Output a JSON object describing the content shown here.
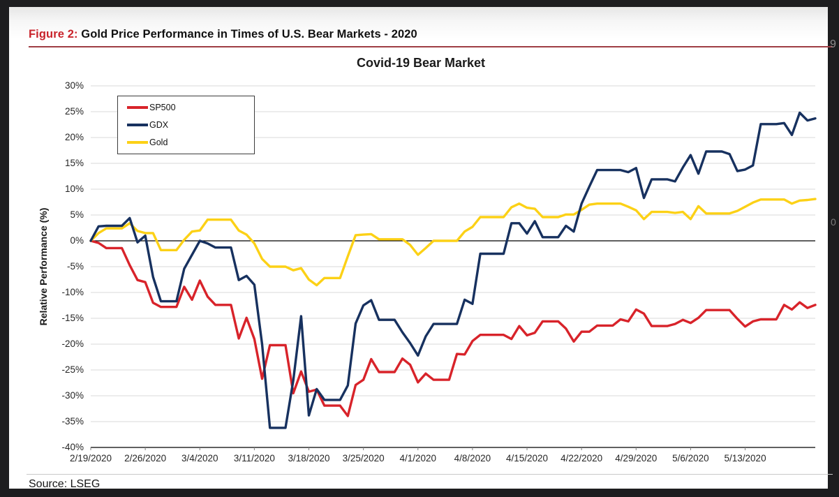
{
  "page": {
    "background": "#1d1d1f",
    "panel_background": "#ffffff"
  },
  "figure_header": {
    "prefix": "Figure 2:",
    "prefix_color": "#c9232b",
    "title": " Gold Price Performance in Times of U.S. Bear Markets - 2020",
    "rule_color": "#9e3e44"
  },
  "source": {
    "label": "Source: LSEG"
  },
  "edge_artifacts": {
    "right_top": "9",
    "right_middle": "0"
  },
  "chart_data": {
    "type": "line",
    "title": "Covid-19 Bear Market",
    "xlabel": "",
    "ylabel": "Relative Performance (%)",
    "ylim": [
      -40,
      30
    ],
    "ytick_step": 5,
    "ytick_labels": [
      "30%",
      "25%",
      "20%",
      "15%",
      "10%",
      "5%",
      "0%",
      "-5%",
      "-10%",
      "-15%",
      "-20%",
      "-25%",
      "-30%",
      "-35%",
      "-40%"
    ],
    "xtick_labels": [
      "2/19/2020",
      "2/26/2020",
      "3/4/2020",
      "3/11/2020",
      "3/18/2020",
      "3/25/2020",
      "4/1/2020",
      "4/8/2020",
      "4/15/2020",
      "4/22/2020",
      "4/29/2020",
      "5/6/2020",
      "5/13/2020"
    ],
    "xtick_every_days": 7,
    "grid": true,
    "zero_line": true,
    "legend_position": "top-left-inside",
    "grid_color": "#d9d9d9",
    "axis_color": "#000000",
    "dates": [
      "2/19/2020",
      "2/20/2020",
      "2/21/2020",
      "2/22/2020",
      "2/23/2020",
      "2/24/2020",
      "2/25/2020",
      "2/26/2020",
      "2/27/2020",
      "2/28/2020",
      "2/29/2020",
      "3/1/2020",
      "3/2/2020",
      "3/3/2020",
      "3/4/2020",
      "3/5/2020",
      "3/6/2020",
      "3/7/2020",
      "3/8/2020",
      "3/9/2020",
      "3/10/2020",
      "3/11/2020",
      "3/12/2020",
      "3/13/2020",
      "3/14/2020",
      "3/15/2020",
      "3/16/2020",
      "3/17/2020",
      "3/18/2020",
      "3/19/2020",
      "3/20/2020",
      "3/21/2020",
      "3/22/2020",
      "3/23/2020",
      "3/24/2020",
      "3/25/2020",
      "3/26/2020",
      "3/27/2020",
      "3/28/2020",
      "3/29/2020",
      "3/30/2020",
      "3/31/2020",
      "4/1/2020",
      "4/2/2020",
      "4/3/2020",
      "4/4/2020",
      "4/5/2020",
      "4/6/2020",
      "4/7/2020",
      "4/8/2020",
      "4/9/2020",
      "4/10/2020",
      "4/11/2020",
      "4/12/2020",
      "4/13/2020",
      "4/14/2020",
      "4/15/2020",
      "4/16/2020",
      "4/17/2020",
      "4/18/2020",
      "4/19/2020",
      "4/20/2020",
      "4/21/2020",
      "4/22/2020",
      "4/23/2020",
      "4/24/2020",
      "4/25/2020",
      "4/26/2020",
      "4/27/2020",
      "4/28/2020",
      "4/29/2020",
      "4/30/2020",
      "5/1/2020",
      "5/2/2020",
      "5/3/2020",
      "5/4/2020",
      "5/5/2020",
      "5/6/2020",
      "5/7/2020",
      "5/8/2020",
      "5/9/2020",
      "5/10/2020",
      "5/11/2020",
      "5/12/2020",
      "5/13/2020",
      "5/14/2020",
      "5/15/2020",
      "5/16/2020",
      "5/17/2020",
      "5/18/2020",
      "5/19/2020",
      "5/20/2020",
      "5/21/2020",
      "5/22/2020"
    ],
    "series": [
      {
        "name": "SP500",
        "color": "#d8232a",
        "values": [
          0.0,
          -0.4,
          -1.4,
          -1.4,
          -1.4,
          -4.7,
          -7.6,
          -8.0,
          -12.0,
          -12.8,
          -12.8,
          -12.8,
          -8.9,
          -11.4,
          -7.7,
          -10.8,
          -12.4,
          -12.4,
          -12.4,
          -18.9,
          -14.9,
          -19.0,
          -26.7,
          -20.2,
          -20.2,
          -20.2,
          -29.5,
          -25.3,
          -29.2,
          -28.8,
          -31.9,
          -31.9,
          -31.9,
          -33.9,
          -27.9,
          -26.9,
          -22.9,
          -25.4,
          -25.4,
          -25.4,
          -22.8,
          -24.0,
          -27.4,
          -25.7,
          -26.9,
          -26.9,
          -26.9,
          -21.9,
          -22.0,
          -19.4,
          -18.2,
          -18.2,
          -18.2,
          -18.2,
          -19.0,
          -16.5,
          -18.3,
          -17.8,
          -15.6,
          -15.6,
          -15.6,
          -17.0,
          -19.5,
          -17.6,
          -17.6,
          -16.4,
          -16.4,
          -16.4,
          -15.2,
          -15.6,
          -13.3,
          -14.1,
          -16.5,
          -16.5,
          -16.5,
          -16.1,
          -15.3,
          -15.9,
          -14.9,
          -13.4,
          -13.4,
          -13.4,
          -13.4,
          -15.1,
          -16.6,
          -15.6,
          -15.2,
          -15.2,
          -15.2,
          -12.4,
          -13.3,
          -11.9,
          -13.0,
          -12.4
        ]
      },
      {
        "name": "GDX",
        "color": "#17315f",
        "values": [
          0.0,
          2.8,
          2.9,
          2.9,
          2.9,
          4.4,
          -0.3,
          1.0,
          -7.0,
          -11.7,
          -11.7,
          -11.7,
          -5.4,
          -2.7,
          0.0,
          -0.5,
          -1.3,
          -1.3,
          -1.3,
          -7.6,
          -6.8,
          -8.5,
          -20.0,
          -36.2,
          -36.2,
          -36.2,
          -27.0,
          -14.6,
          -33.8,
          -28.7,
          -30.8,
          -30.8,
          -30.8,
          -28.0,
          -16.0,
          -12.5,
          -11.5,
          -15.3,
          -15.3,
          -15.3,
          -17.7,
          -19.8,
          -22.2,
          -18.5,
          -16.1,
          -16.1,
          -16.1,
          -16.1,
          -11.4,
          -12.2,
          -2.5,
          -2.5,
          -2.5,
          -2.5,
          3.4,
          3.4,
          1.4,
          3.8,
          0.7,
          0.7,
          0.7,
          2.9,
          1.8,
          7.2,
          10.5,
          13.7,
          13.7,
          13.7,
          13.7,
          13.3,
          14.1,
          8.3,
          11.9,
          11.9,
          11.9,
          11.5,
          14.2,
          16.6,
          13.0,
          17.3,
          17.3,
          17.3,
          16.8,
          13.5,
          13.8,
          14.6,
          22.6,
          22.6,
          22.6,
          22.8,
          20.5,
          24.8,
          23.3,
          23.7
        ]
      },
      {
        "name": "Gold",
        "color": "#fcd116",
        "values": [
          0.0,
          1.5,
          2.4,
          2.4,
          2.4,
          3.4,
          1.9,
          1.5,
          1.5,
          -1.8,
          -1.8,
          -1.8,
          0.2,
          1.8,
          2.0,
          4.1,
          4.1,
          4.1,
          4.1,
          2.0,
          1.2,
          -0.5,
          -3.5,
          -5.0,
          -5.0,
          -5.0,
          -5.7,
          -5.3,
          -7.5,
          -8.6,
          -7.2,
          -7.2,
          -7.2,
          -3.0,
          1.1,
          1.2,
          1.3,
          0.3,
          0.3,
          0.3,
          0.3,
          -0.8,
          -2.7,
          -1.4,
          0.0,
          0.0,
          0.0,
          0.0,
          1.8,
          2.7,
          4.6,
          4.6,
          4.6,
          4.6,
          6.5,
          7.2,
          6.4,
          6.2,
          4.6,
          4.6,
          4.6,
          5.1,
          5.1,
          6.0,
          7.0,
          7.2,
          7.2,
          7.2,
          7.2,
          6.6,
          5.9,
          4.2,
          5.6,
          5.6,
          5.6,
          5.4,
          5.6,
          4.2,
          6.7,
          5.3,
          5.3,
          5.3,
          5.3,
          5.8,
          6.6,
          7.4,
          8.0,
          8.0,
          8.0,
          8.0,
          7.2,
          7.8,
          7.9,
          8.1
        ]
      }
    ]
  }
}
